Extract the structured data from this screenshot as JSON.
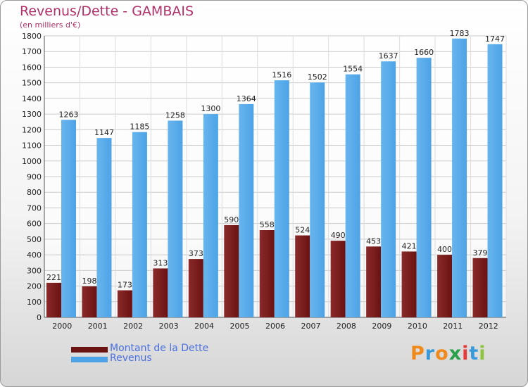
{
  "title": "Revenus/Dette - GAMBAIS",
  "subtitle": "(en milliers d'€)",
  "logo": {
    "letters": [
      "P",
      "r",
      "o",
      "x",
      "i",
      "t",
      "i"
    ],
    "colors": [
      "#f08a1c",
      "#3a9ad9",
      "#f08a1c",
      "#2aa04a",
      "#e63c3c",
      "#3a9ad9",
      "#8cc63e"
    ]
  },
  "colors": {
    "dette": "#6b1212",
    "revenus": "#4da3e6",
    "title": "#b0306a"
  },
  "chart_data": {
    "type": "bar",
    "categories": [
      "2000",
      "2001",
      "2002",
      "2003",
      "2004",
      "2005",
      "2006",
      "2007",
      "2008",
      "2009",
      "2010",
      "2011",
      "2012"
    ],
    "series": [
      {
        "name": "Montant de la Dette",
        "values": [
          221,
          198,
          173,
          313,
          373,
          590,
          558,
          524,
          490,
          453,
          421,
          400,
          379
        ]
      },
      {
        "name": "Revenus",
        "values": [
          1263,
          1147,
          1185,
          1258,
          1300,
          1364,
          1516,
          1502,
          1554,
          1637,
          1660,
          1783,
          1747
        ]
      }
    ],
    "ylim": [
      0,
      1800
    ],
    "yticks": [
      0,
      100,
      200,
      300,
      400,
      500,
      600,
      700,
      800,
      900,
      1000,
      1100,
      1200,
      1300,
      1400,
      1500,
      1600,
      1700,
      1800
    ],
    "grid": true,
    "legend": "bottom-left"
  }
}
